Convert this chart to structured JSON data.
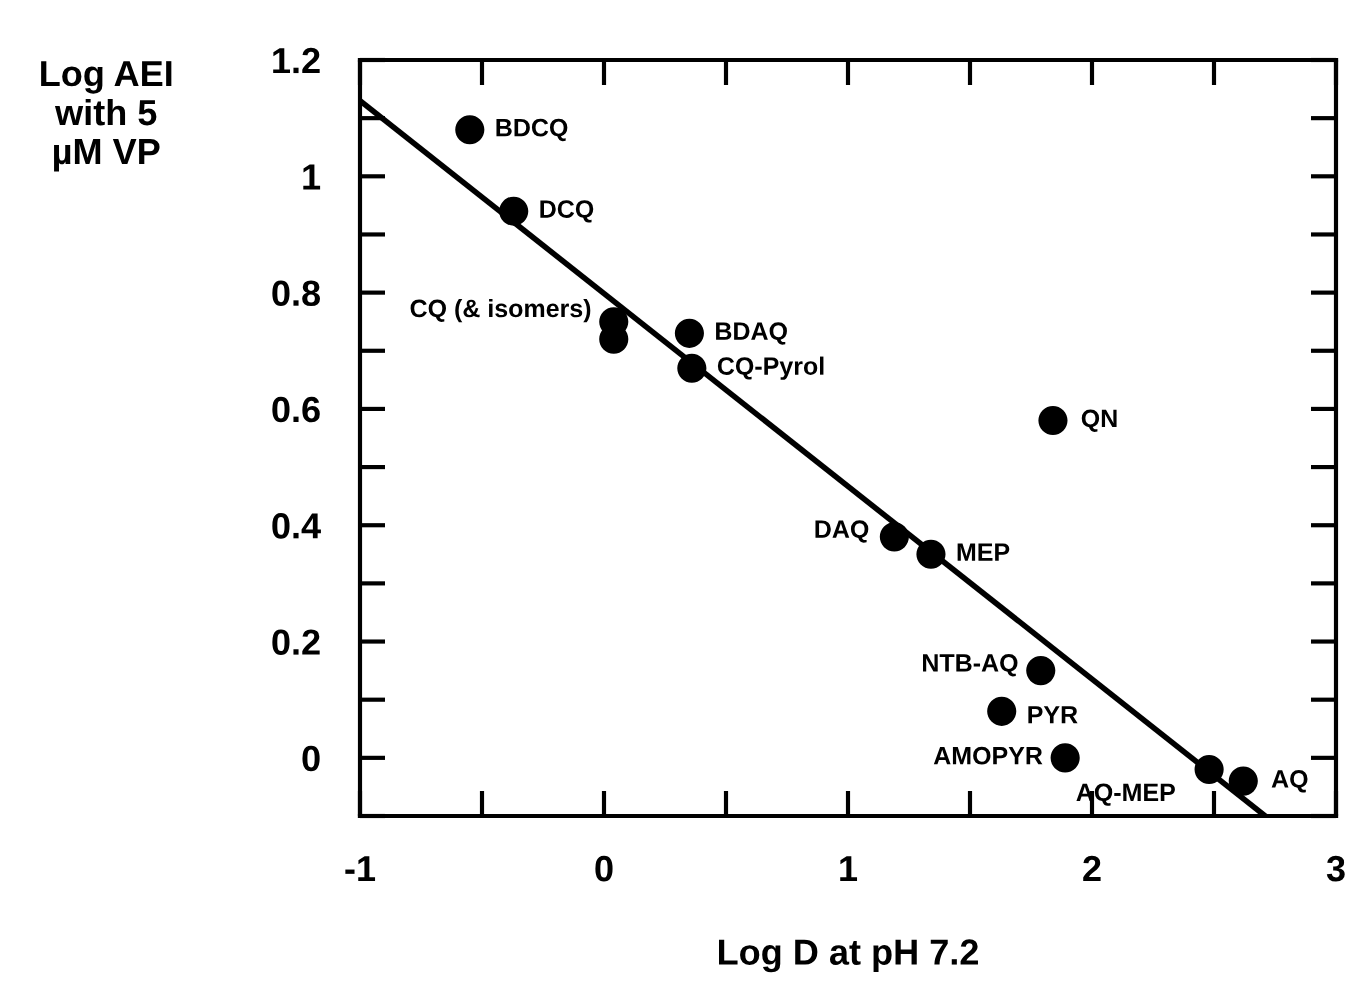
{
  "chart_data": {
    "type": "scatter",
    "xlabel": "Log D at pH 7.2",
    "ylabel": "Log AEI\nwith 5\nµM VP",
    "xlim": [
      -1,
      3
    ],
    "ylim": [
      -0.1,
      1.2
    ],
    "xticks": [
      -1,
      {
        "value": -0.5,
        "label": null
      },
      0,
      {
        "value": 0.5,
        "label": null
      },
      1,
      {
        "value": 1.5,
        "label": null
      },
      2,
      {
        "value": 2.5,
        "label": null
      },
      3
    ],
    "yticks": [
      {
        "value": -0.1,
        "label": null
      },
      0,
      {
        "value": 0.1,
        "label": null
      },
      0.2,
      {
        "value": 0.3,
        "label": null
      },
      0.4,
      {
        "value": 0.5,
        "label": null
      },
      0.6,
      {
        "value": 0.7,
        "label": null
      },
      0.8,
      {
        "value": 0.9,
        "label": null
      },
      1,
      {
        "value": 1.1,
        "label": null
      },
      1.2
    ],
    "grid": false,
    "series": [
      {
        "color": "#000000",
        "marker": "circle",
        "x": [
          -0.55,
          -0.37,
          0.04,
          0.04,
          0.35,
          0.36,
          1.84,
          1.19,
          1.34,
          1.79,
          1.63,
          1.89,
          2.48,
          2.62
        ],
        "values": [
          1.08,
          0.94,
          0.75,
          0.72,
          0.73,
          0.67,
          0.58,
          0.38,
          0.35,
          0.15,
          0.08,
          0.0,
          -0.02,
          -0.04
        ]
      },
      {
        "type": "line",
        "color": "#000000",
        "x": [
          -1,
          2.71
        ],
        "values": [
          1.13,
          -0.1
        ]
      }
    ],
    "annotations": [
      {
        "text": "BDCQ",
        "x": -0.55,
        "y": 1.08
      },
      {
        "text": "DCQ",
        "x": -0.37,
        "y": 0.94
      },
      {
        "text": "CQ (& isomers)",
        "x": 0.04,
        "y": 0.75
      },
      {
        "text": "BDAQ",
        "x": 0.35,
        "y": 0.73
      },
      {
        "text": "CQ-Pyrol",
        "x": 0.36,
        "y": 0.67
      },
      {
        "text": "QN",
        "x": 1.84,
        "y": 0.58
      },
      {
        "text": "DAQ",
        "x": 1.19,
        "y": 0.38
      },
      {
        "text": "MEP",
        "x": 1.34,
        "y": 0.35
      },
      {
        "text": "NTB-AQ",
        "x": 1.79,
        "y": 0.15
      },
      {
        "text": "PYR",
        "x": 1.63,
        "y": 0.08
      },
      {
        "text": "AMOPYR",
        "x": 1.89,
        "y": 0.0
      },
      {
        "text": "AQ-MEP",
        "x": 2.48,
        "y": -0.02
      },
      {
        "text": "AQ",
        "x": 2.62,
        "y": -0.04
      }
    ]
  }
}
